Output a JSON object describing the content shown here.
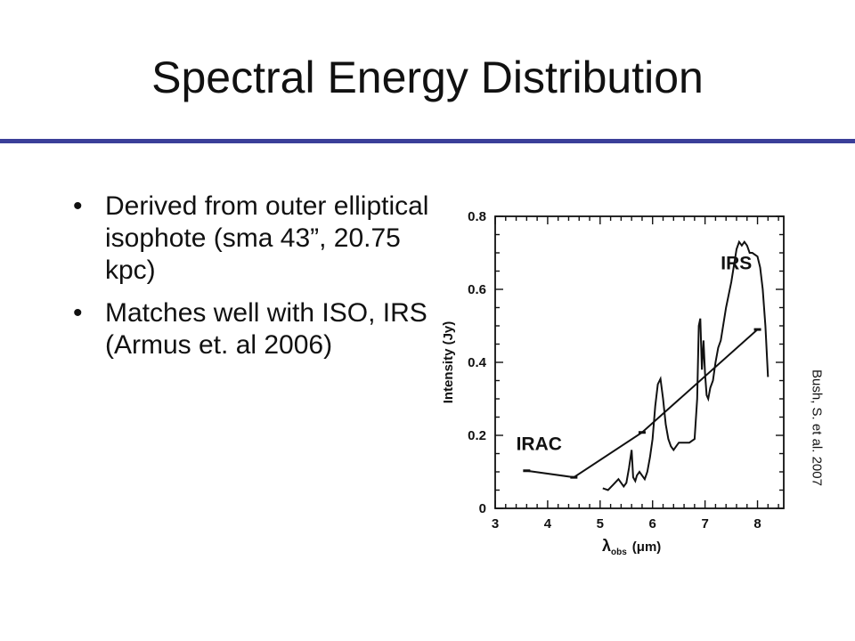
{
  "slide": {
    "title": "Spectral Energy Distribution",
    "accent_color": "#3b3f99",
    "bullets": [
      "Derived from outer elliptical isophote (sma 43”, 20.75 kpc)",
      "Matches well with ISO, IRS (Armus et. al 2006)"
    ],
    "bullet_glyph": "•",
    "credit": "Bush, S. et al. 2007"
  },
  "chart_data": {
    "type": "line",
    "xlabel": "λ",
    "xlabel_sub": "obs",
    "xlabel_unit": "(μm)",
    "ylabel": "Intensity (Jy)",
    "xlim": [
      3,
      8.5
    ],
    "ylim": [
      0,
      0.8
    ],
    "x_ticks": [
      "3",
      "4",
      "5",
      "6",
      "7",
      "8"
    ],
    "y_ticks": [
      "0",
      "0.2",
      "0.4",
      "0.6",
      "0.8"
    ],
    "grid": false,
    "annotations": [
      "IRS",
      "IRAC"
    ],
    "series": [
      {
        "name": "IRAC",
        "x": [
          3.6,
          4.5,
          5.8,
          8.0
        ],
        "y": [
          0.103,
          0.085,
          0.208,
          0.49
        ]
      },
      {
        "name": "IRS",
        "x": [
          5.05,
          5.15,
          5.25,
          5.35,
          5.45,
          5.5,
          5.55,
          5.6,
          5.63,
          5.67,
          5.7,
          5.75,
          5.8,
          5.85,
          5.9,
          5.95,
          6.0,
          6.05,
          6.1,
          6.15,
          6.2,
          6.25,
          6.3,
          6.35,
          6.4,
          6.45,
          6.5,
          6.55,
          6.6,
          6.7,
          6.8,
          6.85,
          6.88,
          6.91,
          6.94,
          6.97,
          7.0,
          7.03,
          7.06,
          7.1,
          7.15,
          7.2,
          7.25,
          7.3,
          7.4,
          7.5,
          7.6,
          7.65,
          7.7,
          7.75,
          7.8,
          7.85,
          7.9,
          8.0,
          8.05,
          8.1,
          8.15,
          8.2
        ],
        "y": [
          0.055,
          0.05,
          0.065,
          0.08,
          0.06,
          0.07,
          0.11,
          0.16,
          0.085,
          0.075,
          0.09,
          0.1,
          0.09,
          0.08,
          0.1,
          0.14,
          0.19,
          0.28,
          0.34,
          0.355,
          0.3,
          0.23,
          0.19,
          0.17,
          0.16,
          0.17,
          0.18,
          0.18,
          0.18,
          0.18,
          0.19,
          0.3,
          0.5,
          0.52,
          0.38,
          0.46,
          0.37,
          0.31,
          0.3,
          0.33,
          0.35,
          0.4,
          0.44,
          0.46,
          0.55,
          0.62,
          0.71,
          0.73,
          0.72,
          0.73,
          0.72,
          0.7,
          0.7,
          0.69,
          0.66,
          0.6,
          0.5,
          0.36
        ]
      }
    ]
  }
}
